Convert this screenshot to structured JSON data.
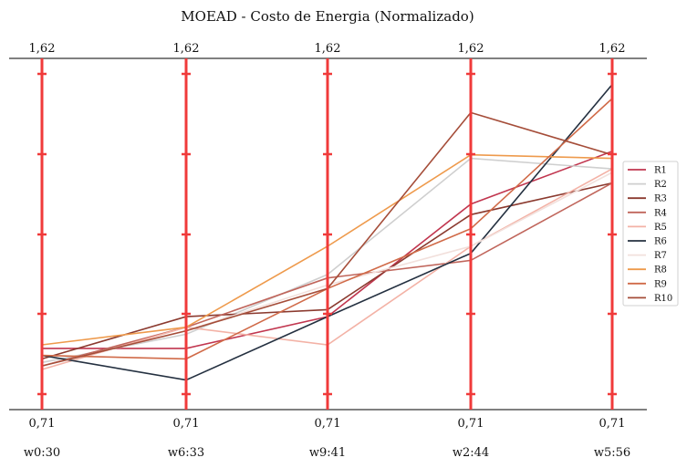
{
  "chart_data": {
    "type": "line",
    "title": "MOEAD - Costo de Energia (Normalizado)",
    "axes": [
      {
        "name": "w0:30",
        "top_label": "1,62",
        "bottom_label": "0,71"
      },
      {
        "name": "w6:33",
        "top_label": "1,62",
        "bottom_label": "0,71"
      },
      {
        "name": "w9:41",
        "top_label": "1,62",
        "bottom_label": "0,71"
      },
      {
        "name": "w2:44",
        "top_label": "1,62",
        "bottom_label": "0,71"
      },
      {
        "name": "w5:56",
        "top_label": "1,62",
        "bottom_label": "0,71"
      }
    ],
    "ylim": [
      0.71,
      1.62
    ],
    "axis_color": "#f03a3a",
    "legend_position": "right",
    "series": [
      {
        "name": "R1",
        "color": "#c1364f",
        "values": [
          0.84,
          0.84,
          0.93,
          1.25,
          1.4
        ]
      },
      {
        "name": "R2",
        "color": "#cfcfcf",
        "values": [
          0.8,
          0.88,
          1.05,
          1.38,
          1.35
        ]
      },
      {
        "name": "R3",
        "color": "#8b3a2f",
        "values": [
          0.81,
          0.93,
          0.95,
          1.22,
          1.31
        ]
      },
      {
        "name": "R4",
        "color": "#c0655b",
        "values": [
          0.79,
          0.9,
          1.04,
          1.09,
          1.31
        ]
      },
      {
        "name": "R5",
        "color": "#f3b2a6",
        "values": [
          0.78,
          0.9,
          0.85,
          1.13,
          1.35
        ]
      },
      {
        "name": "R6",
        "color": "#243040",
        "values": [
          0.82,
          0.75,
          0.93,
          1.11,
          1.59
        ]
      },
      {
        "name": "R7",
        "color": "#f2e0dc",
        "values": [
          0.79,
          0.89,
          1.02,
          1.13,
          1.34
        ]
      },
      {
        "name": "R8",
        "color": "#ee9a4c",
        "values": [
          0.85,
          0.9,
          1.13,
          1.39,
          1.38
        ]
      },
      {
        "name": "R9",
        "color": "#d06a48",
        "values": [
          0.82,
          0.81,
          1.01,
          1.18,
          1.55
        ]
      },
      {
        "name": "R10",
        "color": "#a54d39",
        "values": [
          0.79,
          0.89,
          1.01,
          1.51,
          1.39
        ]
      }
    ]
  }
}
